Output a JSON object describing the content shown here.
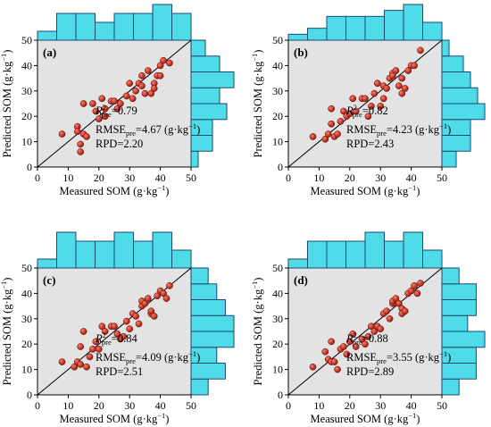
{
  "figure": {
    "xlabel": "Measured SOM",
    "ylabel": "Predicted SOM",
    "unit_text": "(g·kg",
    "unit_exp": "−1",
    "unit_close": ")",
    "r2_sub": "pre",
    "rmse_label": "RMSE",
    "rmse_sub": "pre",
    "rpd_label": "RPD="
  },
  "chart_data": [
    {
      "type": "scatter",
      "panel_label": "(a)",
      "xlabel": "Measured SOM (g·kg⁻¹)",
      "ylabel": "Predicted SOM (g·kg⁻¹)",
      "xlim": [
        0,
        50
      ],
      "ylim": [
        0,
        50
      ],
      "xticks": [
        "0",
        "10",
        "20",
        "30",
        "40",
        "50"
      ],
      "yticks": [
        "0",
        "10",
        "20",
        "30",
        "40",
        "50"
      ],
      "reference_line": "1:1",
      "r2": "0.79",
      "rmse": "4.67",
      "rpd": "2.20",
      "points": [
        [
          8,
          13
        ],
        [
          13,
          16
        ],
        [
          13,
          14
        ],
        [
          14,
          9
        ],
        [
          14,
          6
        ],
        [
          15,
          13
        ],
        [
          15,
          25
        ],
        [
          16,
          12
        ],
        [
          18,
          25
        ],
        [
          19,
          22
        ],
        [
          20,
          19
        ],
        [
          21,
          27
        ],
        [
          22,
          20
        ],
        [
          22,
          23
        ],
        [
          24,
          26
        ],
        [
          25,
          26
        ],
        [
          26,
          23
        ],
        [
          27,
          25
        ],
        [
          29,
          28
        ],
        [
          30,
          33
        ],
        [
          31,
          27
        ],
        [
          32,
          30
        ],
        [
          33,
          33
        ],
        [
          34,
          32
        ],
        [
          34,
          36
        ],
        [
          35,
          29
        ],
        [
          36,
          38
        ],
        [
          37,
          29
        ],
        [
          38,
          33
        ],
        [
          38,
          31
        ],
        [
          39,
          36
        ],
        [
          40,
          36
        ],
        [
          40,
          40
        ],
        [
          41,
          42
        ],
        [
          43,
          41
        ]
      ],
      "hist_x": [
        1,
        3,
        3,
        2,
        3,
        3,
        4,
        3
      ],
      "hist_y": [
        1,
        3,
        3,
        5,
        4,
        6,
        4,
        2
      ]
    },
    {
      "type": "scatter",
      "panel_label": "(b)",
      "xlabel": "Measured SOM (g·kg⁻¹)",
      "ylabel": "Predicted SOM (g·kg⁻¹)",
      "xlim": [
        0,
        50
      ],
      "ylim": [
        0,
        50
      ],
      "xticks": [
        "0",
        "10",
        "20",
        "30",
        "40",
        "50"
      ],
      "yticks": [
        "0",
        "10",
        "20",
        "30",
        "40",
        "50"
      ],
      "reference_line": "1:1",
      "r2": "0.82",
      "rmse": "4.23",
      "rpd": "2.43",
      "points": [
        [
          8,
          12
        ],
        [
          12,
          11
        ],
        [
          13,
          13
        ],
        [
          14,
          17
        ],
        [
          14,
          23
        ],
        [
          15,
          12
        ],
        [
          16,
          13
        ],
        [
          17,
          18
        ],
        [
          18,
          22
        ],
        [
          19,
          20
        ],
        [
          20,
          21
        ],
        [
          21,
          27
        ],
        [
          22,
          22
        ],
        [
          24,
          27
        ],
        [
          25,
          27
        ],
        [
          26,
          20
        ],
        [
          27,
          24
        ],
        [
          28,
          29
        ],
        [
          29,
          33
        ],
        [
          30,
          24
        ],
        [
          31,
          27
        ],
        [
          31,
          32
        ],
        [
          32,
          31
        ],
        [
          33,
          35
        ],
        [
          34,
          37
        ],
        [
          34,
          36
        ],
        [
          35,
          38
        ],
        [
          36,
          32
        ],
        [
          37,
          29
        ],
        [
          37,
          35
        ],
        [
          38,
          31
        ],
        [
          39,
          38
        ],
        [
          40,
          40
        ],
        [
          41,
          40
        ],
        [
          43,
          46
        ]
      ],
      "hist_x": [
        1,
        2,
        4,
        4,
        4,
        5,
        6,
        3
      ],
      "hist_y": [
        2,
        4,
        4,
        6,
        5,
        4,
        3,
        1
      ]
    },
    {
      "type": "scatter",
      "panel_label": "(c)",
      "xlabel": "Measured SOM (g·kg⁻¹)",
      "ylabel": "Predicted SOM (g·kg⁻¹)",
      "xlim": [
        0,
        50
      ],
      "ylim": [
        0,
        50
      ],
      "xticks": [
        "0",
        "10",
        "20",
        "30",
        "40",
        "50"
      ],
      "yticks": [
        "0",
        "10",
        "20",
        "30",
        "40",
        "50"
      ],
      "reference_line": "1:1",
      "r2": "0.84",
      "rmse": "4.09",
      "rpd": "2.51",
      "points": [
        [
          8,
          13
        ],
        [
          12,
          11
        ],
        [
          13,
          13
        ],
        [
          14,
          12
        ],
        [
          14,
          19
        ],
        [
          15,
          25
        ],
        [
          16,
          11
        ],
        [
          17,
          15
        ],
        [
          18,
          18
        ],
        [
          19,
          21
        ],
        [
          20,
          18
        ],
        [
          21,
          27
        ],
        [
          22,
          25
        ],
        [
          24,
          27
        ],
        [
          25,
          27
        ],
        [
          26,
          24
        ],
        [
          27,
          22
        ],
        [
          28,
          23
        ],
        [
          29,
          29
        ],
        [
          30,
          26
        ],
        [
          31,
          32
        ],
        [
          32,
          31
        ],
        [
          33,
          28
        ],
        [
          34,
          35
        ],
        [
          34,
          37
        ],
        [
          35,
          36
        ],
        [
          36,
          38
        ],
        [
          37,
          32
        ],
        [
          37,
          33
        ],
        [
          38,
          31
        ],
        [
          39,
          39
        ],
        [
          40,
          41
        ],
        [
          41,
          40
        ],
        [
          42,
          38
        ],
        [
          43,
          43
        ]
      ],
      "hist_x": [
        1,
        4,
        3,
        3,
        4,
        3,
        4,
        2
      ],
      "hist_y": [
        2,
        4,
        3,
        5,
        5,
        4,
        3,
        2
      ]
    },
    {
      "type": "scatter",
      "panel_label": "(d)",
      "xlabel": "Measured SOM (g·kg⁻¹)",
      "ylabel": "Predicted SOM (g·kg⁻¹)",
      "xlim": [
        0,
        50
      ],
      "ylim": [
        0,
        50
      ],
      "xticks": [
        "0",
        "10",
        "20",
        "30",
        "40",
        "50"
      ],
      "yticks": [
        "0",
        "10",
        "20",
        "30",
        "40",
        "50"
      ],
      "reference_line": "1:1",
      "r2": "0.88",
      "rmse": "3.55",
      "rpd": "2.89",
      "points": [
        [
          8,
          11
        ],
        [
          12,
          17
        ],
        [
          13,
          14
        ],
        [
          14,
          13
        ],
        [
          14,
          21
        ],
        [
          15,
          13
        ],
        [
          16,
          10
        ],
        [
          17,
          18
        ],
        [
          18,
          19
        ],
        [
          19,
          16
        ],
        [
          20,
          21
        ],
        [
          21,
          24
        ],
        [
          22,
          19
        ],
        [
          24,
          22
        ],
        [
          25,
          20
        ],
        [
          26,
          23
        ],
        [
          27,
          27
        ],
        [
          28,
          25
        ],
        [
          29,
          27
        ],
        [
          30,
          26
        ],
        [
          31,
          32
        ],
        [
          32,
          33
        ],
        [
          33,
          30
        ],
        [
          34,
          36
        ],
        [
          34,
          37
        ],
        [
          35,
          38
        ],
        [
          36,
          36
        ],
        [
          37,
          34
        ],
        [
          37,
          32
        ],
        [
          38,
          33
        ],
        [
          39,
          40
        ],
        [
          40,
          41
        ],
        [
          41,
          43
        ],
        [
          42,
          40
        ],
        [
          43,
          44
        ]
      ],
      "hist_x": [
        1,
        3,
        3,
        3,
        4,
        3,
        4,
        2
      ],
      "hist_y": [
        2,
        4,
        4,
        5,
        3,
        4,
        4,
        2
      ]
    }
  ]
}
